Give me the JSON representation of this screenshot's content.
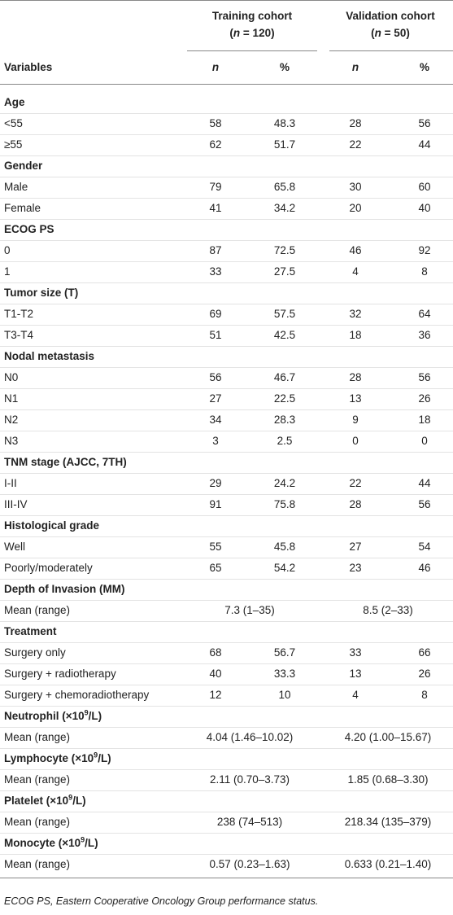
{
  "table": {
    "cohorts": [
      {
        "name": "Training cohort",
        "size": [
          "(",
          "n",
          " = 120)"
        ]
      },
      {
        "name": "Validation cohort",
        "size": [
          "(",
          "n",
          " = 50)"
        ]
      }
    ],
    "columns": [
      "Variables",
      "n",
      "%",
      "n",
      "%"
    ],
    "rows": [
      {
        "group": [
          "Age"
        ]
      },
      {
        "label": "<55",
        "cells": [
          58,
          48.3,
          28,
          56
        ]
      },
      {
        "label": "≥55",
        "cells": [
          62,
          51.7,
          22,
          44
        ]
      },
      {
        "group": [
          "Gender"
        ]
      },
      {
        "label": "Male",
        "cells": [
          79,
          65.8,
          30,
          60
        ]
      },
      {
        "label": "Female",
        "cells": [
          41,
          34.2,
          20,
          40
        ]
      },
      {
        "group": [
          "ECOG PS"
        ]
      },
      {
        "label": "0",
        "cells": [
          87,
          72.5,
          46,
          92
        ]
      },
      {
        "label": "1",
        "cells": [
          33,
          27.5,
          4,
          8
        ]
      },
      {
        "group": [
          "Tumor size (T)"
        ]
      },
      {
        "label": "T1-T2",
        "cells": [
          69,
          57.5,
          32,
          64
        ]
      },
      {
        "label": "T3-T4",
        "cells": [
          51,
          42.5,
          18,
          36
        ]
      },
      {
        "group": [
          "Nodal metastasis"
        ]
      },
      {
        "label": "N0",
        "cells": [
          56,
          46.7,
          28,
          56
        ]
      },
      {
        "label": "N1",
        "cells": [
          27,
          22.5,
          13,
          26
        ]
      },
      {
        "label": "N2",
        "cells": [
          34,
          28.3,
          9,
          18
        ]
      },
      {
        "label": "N3",
        "cells": [
          3,
          2.5,
          0,
          0
        ]
      },
      {
        "group": [
          "TNM stage (AJCC, 7TH)"
        ]
      },
      {
        "label": "I-II",
        "cells": [
          29,
          24.2,
          22,
          44
        ]
      },
      {
        "label": "III-IV",
        "cells": [
          91,
          75.8,
          28,
          56
        ]
      },
      {
        "group": [
          "Histological grade"
        ]
      },
      {
        "label": "Well",
        "cells": [
          55,
          45.8,
          27,
          54
        ]
      },
      {
        "label": "Poorly/moderately",
        "cells": [
          65,
          54.2,
          23,
          46
        ]
      },
      {
        "group": [
          "Depth of Invasion (MM)"
        ]
      },
      {
        "label": "Mean (range)",
        "spans": [
          "7.3 (1–35)",
          "8.5 (2–33)"
        ]
      },
      {
        "group": [
          "Treatment"
        ]
      },
      {
        "label": "Surgery only",
        "cells": [
          68,
          56.7,
          33,
          66
        ]
      },
      {
        "label": "Surgery + radiotherapy",
        "cells": [
          40,
          33.3,
          13,
          26
        ]
      },
      {
        "label": "Surgery + chemoradiotherapy",
        "cells": [
          12,
          10,
          4,
          8
        ]
      },
      {
        "group": [
          "Neutrophil (×10",
          "9",
          "/L)"
        ]
      },
      {
        "label": "Mean (range)",
        "spans": [
          "4.04 (1.46–10.02)",
          "4.20 (1.00–15.67)"
        ]
      },
      {
        "group": [
          "Lymphocyte (×10",
          "9",
          "/L)"
        ]
      },
      {
        "label": "Mean (range)",
        "spans": [
          "2.11 (0.70–3.73)",
          "1.85 (0.68–3.30)"
        ]
      },
      {
        "group": [
          "Platelet (×10",
          "9",
          "/L)"
        ]
      },
      {
        "label": "Mean (range)",
        "spans": [
          "238 (74–513)",
          "218.34 (135–379)"
        ]
      },
      {
        "group": [
          "Monocyte (×10",
          "9",
          "/L)"
        ]
      },
      {
        "label": "Mean (range)",
        "spans": [
          "0.57 (0.23–1.63)",
          "0.633 (0.21–1.40)"
        ]
      }
    ],
    "footnote": "ECOG PS, Eastern Cooperative Oncology Group performance status."
  }
}
